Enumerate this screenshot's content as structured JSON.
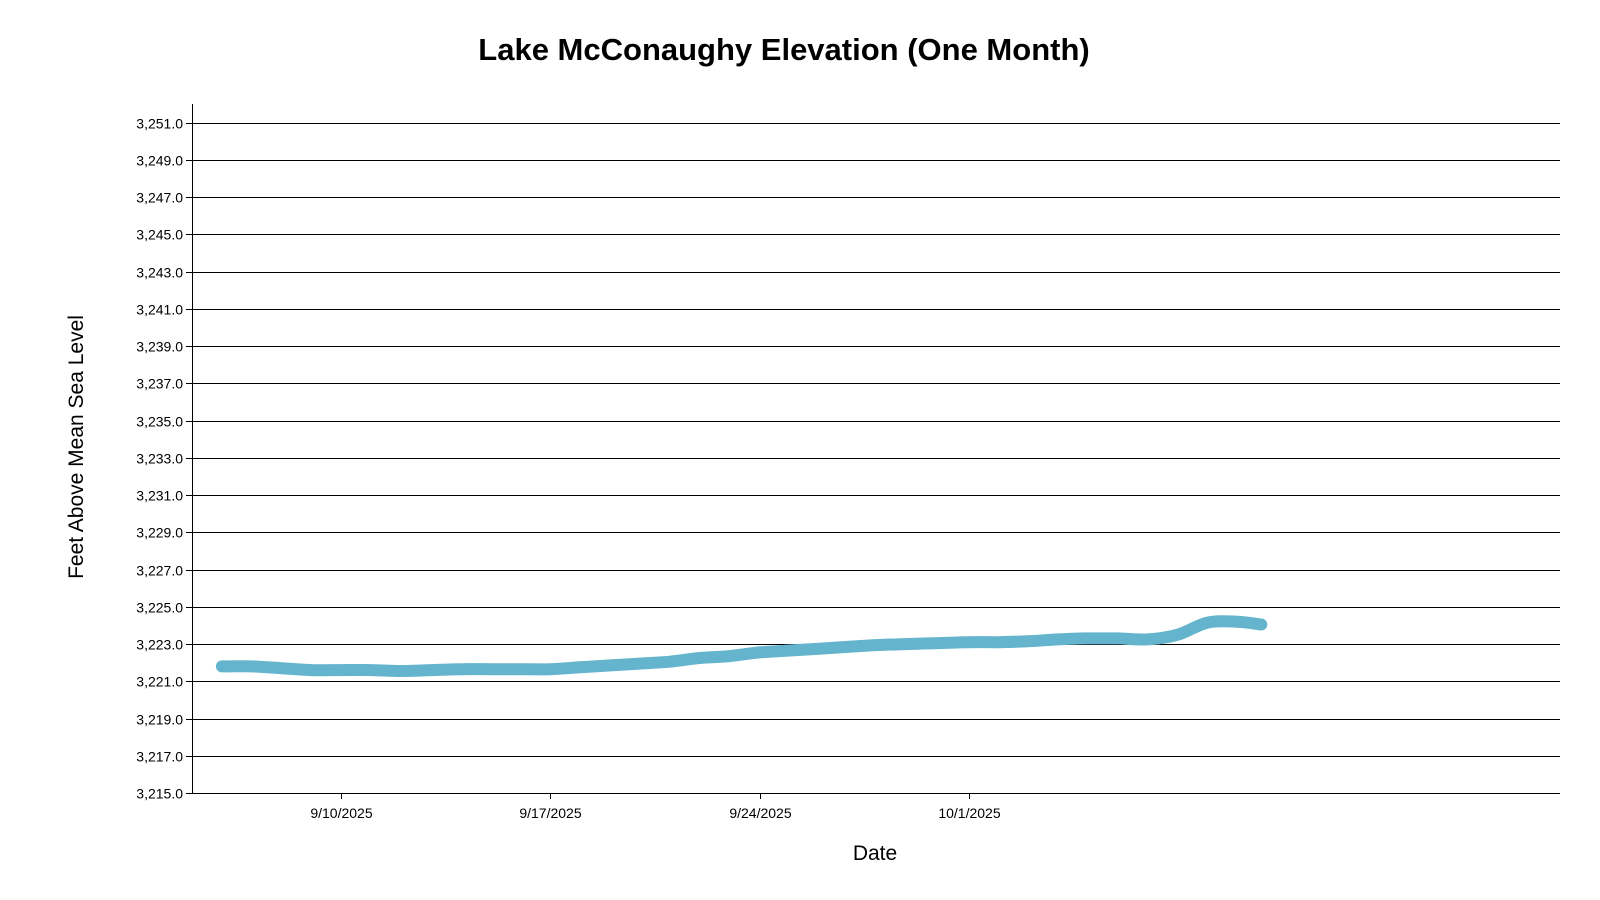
{
  "chart_data": {
    "type": "line",
    "title": "Lake McConaughy Elevation (One Month)",
    "xlabel": "Date",
    "ylabel": "Feet Above Mean Sea Level",
    "ylim": [
      3215.0,
      3252.0
    ],
    "yticks": [
      3215.0,
      3217.0,
      3219.0,
      3221.0,
      3223.0,
      3225.0,
      3227.0,
      3229.0,
      3231.0,
      3233.0,
      3235.0,
      3237.0,
      3239.0,
      3241.0,
      3243.0,
      3245.0,
      3247.0,
      3249.0,
      3251.0
    ],
    "ytick_labels": [
      "3,215.0",
      "3,217.0",
      "3,219.0",
      "3,221.0",
      "3,223.0",
      "3,225.0",
      "3,227.0",
      "3,229.0",
      "3,231.0",
      "3,233.0",
      "3,235.0",
      "3,237.0",
      "3,239.0",
      "3,241.0",
      "3,243.0",
      "3,245.0",
      "3,247.0",
      "3,249.0",
      "3,251.0"
    ],
    "xlim_days": [
      -5.0,
      40.8
    ],
    "xticks_days": [
      0,
      7,
      14,
      21
    ],
    "xtick_labels": [
      "9/10/2025",
      "9/17/2025",
      "9/24/2025",
      "10/1/2025"
    ],
    "x_days_note": "days since 9/10/2025",
    "grid": true,
    "series": [
      {
        "name": "Elevation",
        "color": "#63b4cc",
        "x": [
          -4,
          -3,
          -2,
          -1,
          0,
          1,
          2,
          3,
          4,
          5,
          6,
          7,
          8,
          9,
          10,
          11,
          12,
          13,
          14,
          15,
          16,
          17,
          18,
          19,
          20,
          21,
          22,
          23,
          24,
          25,
          26,
          27,
          28,
          29,
          30,
          30.8
        ],
        "values": [
          3221.8,
          3221.8,
          3221.7,
          3221.6,
          3221.6,
          3221.6,
          3221.55,
          3221.6,
          3221.65,
          3221.65,
          3221.65,
          3221.65,
          3221.75,
          3221.85,
          3221.95,
          3222.05,
          3222.25,
          3222.35,
          3222.55,
          3222.65,
          3222.75,
          3222.85,
          3222.95,
          3223.0,
          3223.05,
          3223.1,
          3223.1,
          3223.15,
          3223.25,
          3223.3,
          3223.3,
          3223.25,
          3223.5,
          3224.15,
          3224.2,
          3224.05
        ]
      }
    ]
  }
}
